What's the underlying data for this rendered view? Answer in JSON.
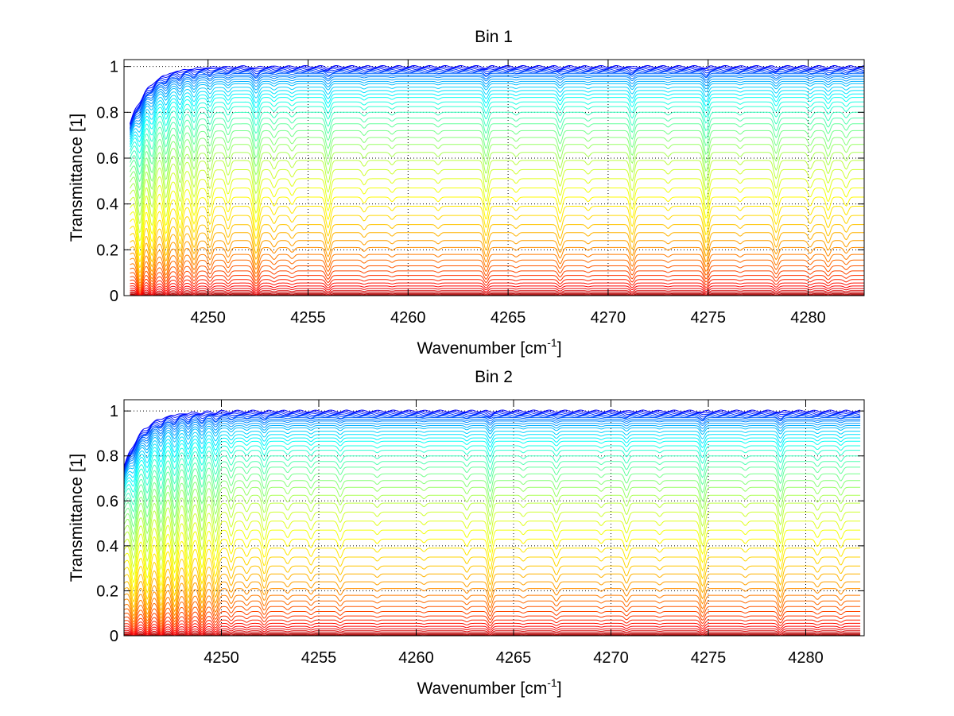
{
  "chart_data": [
    {
      "type": "line",
      "title": "Bin 1",
      "xlabel": "Wavenumber [cm",
      "xlabel_sup": "-1",
      "xlabel_end": "]",
      "ylabel": "Transmittance [1]",
      "xlim": [
        4245.8,
        4282.8
      ],
      "ylim": [
        0,
        1.03
      ],
      "xticks": [
        4250,
        4255,
        4260,
        4265,
        4270,
        4275,
        4280
      ],
      "xtick_labels": [
        "4250",
        "4255",
        "4260",
        "4265",
        "4270",
        "4275",
        "4280"
      ],
      "yticks": [
        0,
        0.2,
        0.4,
        0.6,
        0.8,
        1
      ],
      "ytick_labels": [
        "0",
        "0.2",
        "0.4",
        "0.6",
        "0.8",
        "1"
      ],
      "grid": true,
      "x_range_data": [
        4246.1,
        4282.8
      ],
      "series_levels": [
        1.0,
        0.995,
        0.99,
        0.985,
        0.98,
        0.975,
        0.97,
        0.962,
        0.955,
        0.945,
        0.935,
        0.925,
        0.91,
        0.895,
        0.88,
        0.865,
        0.845,
        0.825,
        0.8,
        0.775,
        0.75,
        0.72,
        0.69,
        0.66,
        0.625,
        0.59,
        0.55,
        0.51,
        0.47,
        0.43,
        0.39,
        0.35,
        0.31,
        0.275,
        0.24,
        0.21,
        0.18,
        0.155,
        0.13,
        0.108,
        0.088,
        0.07,
        0.055,
        0.042,
        0.031,
        0.022,
        0.015,
        0.009,
        0.005,
        0.002,
        0.0
      ],
      "absorption_lines": [
        {
          "x": 4246.6,
          "depth": 0.6,
          "width": 0.18
        },
        {
          "x": 4247.2,
          "depth": 0.5,
          "width": 0.18
        },
        {
          "x": 4247.9,
          "depth": 0.45,
          "width": 0.16
        },
        {
          "x": 4248.6,
          "depth": 0.4,
          "width": 0.16
        },
        {
          "x": 4249.3,
          "depth": 0.35,
          "width": 0.16
        },
        {
          "x": 4250.1,
          "depth": 0.25,
          "width": 0.15
        },
        {
          "x": 4251.0,
          "depth": 0.2,
          "width": 0.15
        },
        {
          "x": 4252.4,
          "depth": 0.45,
          "width": 0.18
        },
        {
          "x": 4253.3,
          "depth": 0.12,
          "width": 0.15
        },
        {
          "x": 4254.2,
          "depth": 0.1,
          "width": 0.15
        },
        {
          "x": 4256.0,
          "depth": 0.3,
          "width": 0.16
        },
        {
          "x": 4257.8,
          "depth": 0.08,
          "width": 0.14
        },
        {
          "x": 4259.2,
          "depth": 0.06,
          "width": 0.14
        },
        {
          "x": 4261.5,
          "depth": 0.06,
          "width": 0.14
        },
        {
          "x": 4263.9,
          "depth": 0.3,
          "width": 0.15
        },
        {
          "x": 4265.4,
          "depth": 0.06,
          "width": 0.14
        },
        {
          "x": 4267.6,
          "depth": 0.22,
          "width": 0.15
        },
        {
          "x": 4269.0,
          "depth": 0.06,
          "width": 0.14
        },
        {
          "x": 4271.2,
          "depth": 0.28,
          "width": 0.15
        },
        {
          "x": 4273.0,
          "depth": 0.06,
          "width": 0.14
        },
        {
          "x": 4274.9,
          "depth": 0.4,
          "width": 0.16
        },
        {
          "x": 4276.6,
          "depth": 0.06,
          "width": 0.14
        },
        {
          "x": 4278.4,
          "depth": 0.25,
          "width": 0.16
        },
        {
          "x": 4280.1,
          "depth": 0.12,
          "width": 0.15
        },
        {
          "x": 4281.0,
          "depth": 0.18,
          "width": 0.15
        },
        {
          "x": 4281.9,
          "depth": 0.12,
          "width": 0.15
        }
      ]
    },
    {
      "type": "line",
      "title": "Bin 2",
      "xlabel": "Wavenumber [cm",
      "xlabel_sup": "-1",
      "xlabel_end": "]",
      "ylabel": "Transmittance [1]",
      "xlim": [
        4245.0,
        4283.0
      ],
      "ylim": [
        0,
        1.05
      ],
      "xticks": [
        4250,
        4255,
        4260,
        4265,
        4270,
        4275,
        4280
      ],
      "xtick_labels": [
        "4250",
        "4255",
        "4260",
        "4265",
        "4270",
        "4275",
        "4280"
      ],
      "yticks": [
        0,
        0.2,
        0.4,
        0.6,
        0.8,
        1
      ],
      "ytick_labels": [
        "0",
        "0.2",
        "0.4",
        "0.6",
        "0.8",
        "1"
      ],
      "grid": true,
      "x_range_data": [
        4245.0,
        4282.8
      ],
      "series_levels": [
        1.0,
        0.995,
        0.99,
        0.985,
        0.98,
        0.975,
        0.97,
        0.962,
        0.955,
        0.945,
        0.935,
        0.925,
        0.91,
        0.895,
        0.88,
        0.865,
        0.845,
        0.825,
        0.8,
        0.775,
        0.75,
        0.72,
        0.69,
        0.66,
        0.625,
        0.59,
        0.55,
        0.51,
        0.47,
        0.43,
        0.39,
        0.35,
        0.31,
        0.275,
        0.24,
        0.21,
        0.18,
        0.155,
        0.13,
        0.108,
        0.088,
        0.07,
        0.055,
        0.042,
        0.031,
        0.022,
        0.015,
        0.009,
        0.005,
        0.002,
        0.0
      ],
      "absorption_lines": [
        {
          "x": 4245.5,
          "depth": 0.5,
          "width": 0.18
        },
        {
          "x": 4246.2,
          "depth": 0.55,
          "width": 0.18
        },
        {
          "x": 4246.9,
          "depth": 0.6,
          "width": 0.18
        },
        {
          "x": 4247.6,
          "depth": 0.55,
          "width": 0.18
        },
        {
          "x": 4248.3,
          "depth": 0.5,
          "width": 0.17
        },
        {
          "x": 4249.0,
          "depth": 0.5,
          "width": 0.17
        },
        {
          "x": 4249.7,
          "depth": 0.4,
          "width": 0.17
        },
        {
          "x": 4250.5,
          "depth": 0.2,
          "width": 0.15
        },
        {
          "x": 4251.3,
          "depth": 0.12,
          "width": 0.15
        },
        {
          "x": 4252.2,
          "depth": 0.25,
          "width": 0.16
        },
        {
          "x": 4253.4,
          "depth": 0.1,
          "width": 0.15
        },
        {
          "x": 4254.6,
          "depth": 0.12,
          "width": 0.15
        },
        {
          "x": 4256.1,
          "depth": 0.14,
          "width": 0.15
        },
        {
          "x": 4258.0,
          "depth": 0.06,
          "width": 0.14
        },
        {
          "x": 4260.4,
          "depth": 0.05,
          "width": 0.14
        },
        {
          "x": 4262.6,
          "depth": 0.1,
          "width": 0.14
        },
        {
          "x": 4263.8,
          "depth": 0.3,
          "width": 0.15
        },
        {
          "x": 4265.5,
          "depth": 0.06,
          "width": 0.14
        },
        {
          "x": 4267.2,
          "depth": 0.14,
          "width": 0.15
        },
        {
          "x": 4269.5,
          "depth": 0.06,
          "width": 0.14
        },
        {
          "x": 4270.8,
          "depth": 0.16,
          "width": 0.15
        },
        {
          "x": 4272.5,
          "depth": 0.06,
          "width": 0.14
        },
        {
          "x": 4274.7,
          "depth": 0.32,
          "width": 0.16
        },
        {
          "x": 4276.9,
          "depth": 0.06,
          "width": 0.14
        },
        {
          "x": 4278.7,
          "depth": 0.3,
          "width": 0.16
        },
        {
          "x": 4280.6,
          "depth": 0.1,
          "width": 0.15
        },
        {
          "x": 4281.8,
          "depth": 0.12,
          "width": 0.15
        }
      ]
    }
  ]
}
